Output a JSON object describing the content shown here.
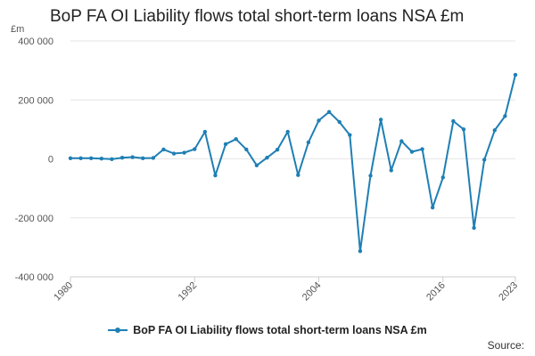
{
  "title": "BoP FA OI Liability flows total short-term loans NSA £m",
  "source_label": "Source:",
  "colors": {
    "series": "#1f7fb4",
    "grid": "#e6e6e6",
    "axis": "#cccccc"
  },
  "chart_data": {
    "type": "line",
    "title": "BoP FA OI Liability flows total short-term loans NSA £m",
    "ylabel": "£m",
    "xlabel": "",
    "ylim": [
      -400000,
      400000
    ],
    "yticks": [
      400000,
      200000,
      0,
      -200000,
      -400000
    ],
    "ytick_labels": [
      "400 000",
      "200 000",
      "0",
      "-200 000",
      "-400 000"
    ],
    "xlim": [
      1980,
      2023
    ],
    "xticks": [
      1980,
      1992,
      2004,
      2016,
      2023
    ],
    "xtick_labels": [
      "1980",
      "1992",
      "2004",
      "2016",
      "2023"
    ],
    "grid": true,
    "legend_position": "bottom",
    "series": [
      {
        "name": "BoP FA OI Liability flows total short-term loans NSA £m",
        "x": [
          1980,
          1981,
          1982,
          1983,
          1984,
          1985,
          1986,
          1987,
          1988,
          1989,
          1990,
          1991,
          1992,
          1993,
          1994,
          1995,
          1996,
          1997,
          1998,
          1999,
          2000,
          2001,
          2002,
          2003,
          2004,
          2005,
          2006,
          2007,
          2008,
          2009,
          2010,
          2011,
          2012,
          2013,
          2014,
          2015,
          2016,
          2017,
          2018,
          2019,
          2020,
          2021,
          2022,
          2023
        ],
        "values": [
          2000,
          2000,
          2000,
          1000,
          -1000,
          4000,
          6000,
          2000,
          3000,
          32000,
          18000,
          21000,
          33000,
          92000,
          -56000,
          50000,
          67000,
          32000,
          -22000,
          4000,
          31000,
          92000,
          -55000,
          56000,
          130000,
          159000,
          125000,
          81000,
          -313000,
          -57000,
          133000,
          -39000,
          60000,
          24000,
          33000,
          -165000,
          -63000,
          128000,
          100000,
          -234000,
          -3000,
          97000,
          145000,
          285000
        ]
      }
    ]
  }
}
